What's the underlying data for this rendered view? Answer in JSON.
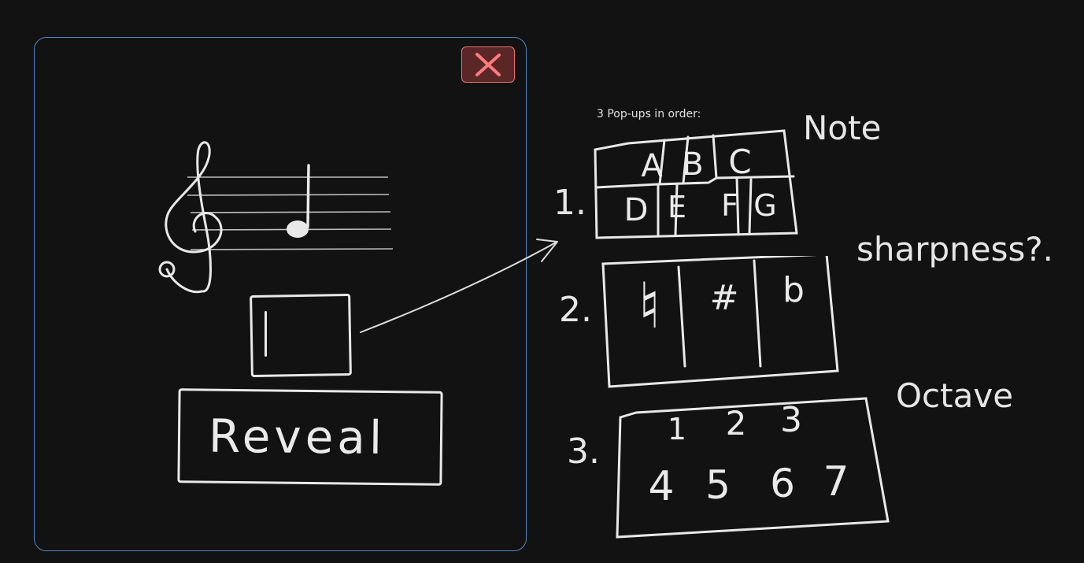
{
  "caption": "3 Pop-ups in order:",
  "reveal_label": "Reveal",
  "popups": [
    {
      "number": "1.",
      "label": "Note",
      "row1": [
        "A",
        "B",
        "C"
      ],
      "row2": [
        "D",
        "E",
        "F",
        "G"
      ]
    },
    {
      "number": "2.",
      "label": "sharpness?.",
      "options": [
        "♮",
        "#",
        "b"
      ]
    },
    {
      "number": "3.",
      "label": "Octave",
      "row1": [
        "1",
        "2",
        "3"
      ],
      "row2": [
        "4",
        "5",
        "6",
        "7"
      ]
    }
  ],
  "icons": [
    "close-icon",
    "treble-clef-icon",
    "quarter-note-icon",
    "arrow-icon"
  ],
  "colors": {
    "background": "#121212",
    "dialog_border": "#4f86c6",
    "close_fill": "#5a2626",
    "close_stroke": "#e57373",
    "stroke": "#e8e8e8"
  }
}
